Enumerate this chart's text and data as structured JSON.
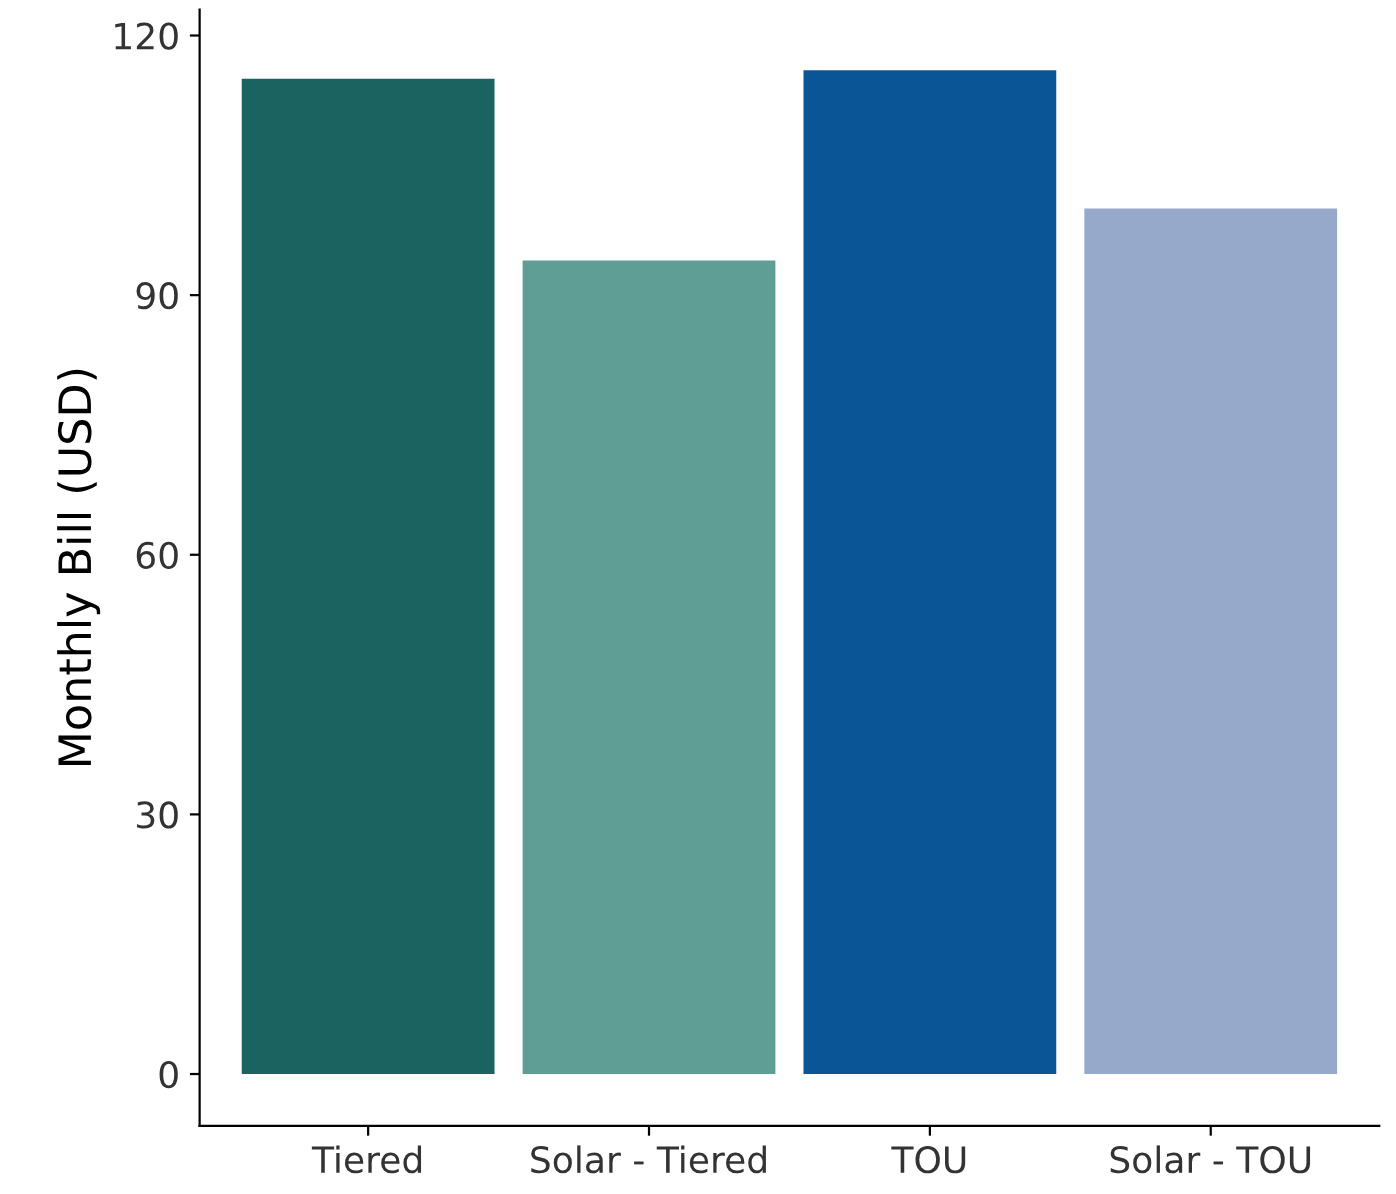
{
  "chart_data": {
    "type": "bar",
    "ylabel": "Monthly Bill (USD)",
    "categories": [
      "Tiered",
      "Solar - Tiered",
      "TOU",
      "Solar - TOU"
    ],
    "values": [
      115,
      94,
      116,
      100
    ],
    "colors": [
      "#1b6360",
      "#5f9e94",
      "#0a5596",
      "#96a9ca"
    ],
    "ylim": [
      -6,
      123
    ],
    "yticks": [
      0,
      30,
      60,
      90,
      120
    ],
    "grid": false
  }
}
